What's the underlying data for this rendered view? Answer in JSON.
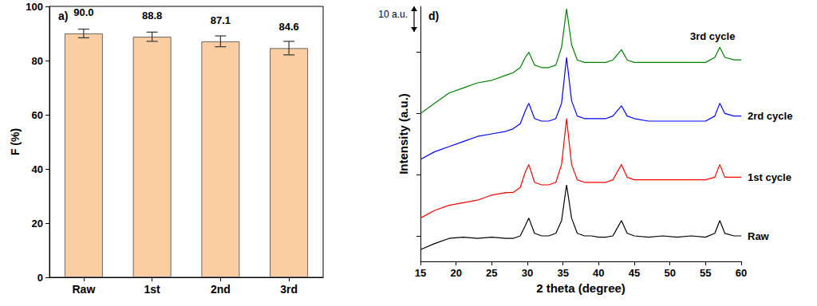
{
  "chart_data": [
    {
      "type": "bar",
      "title": "a)",
      "categories": [
        "Raw",
        "1st",
        "2nd",
        "3rd"
      ],
      "values": [
        90.0,
        88.8,
        87.1,
        84.6
      ],
      "value_labels": [
        "90.0",
        "88.8",
        "87.1",
        "84.6"
      ],
      "errors": [
        1.6,
        1.7,
        2.0,
        2.5
      ],
      "color": "#fbcda3",
      "ylabel": "F (%)",
      "ylim": [
        0,
        100
      ],
      "yticks": [
        0,
        20,
        40,
        60,
        80,
        100
      ],
      "data_labels": true,
      "grid": false
    },
    {
      "type": "line",
      "title": "d)",
      "xlabel": "2 theta (degree)",
      "ylabel": "Intensity (a.u.)",
      "x": [
        15,
        17,
        19,
        21,
        23,
        25,
        27,
        28,
        29,
        29.7,
        30.2,
        31,
        32,
        33,
        34,
        34.8,
        35.5,
        36.2,
        37,
        38,
        39,
        40,
        41,
        42,
        42.6,
        43.2,
        44,
        45,
        47,
        49,
        51,
        53,
        55,
        56.3,
        57,
        57.7,
        59,
        60
      ],
      "series": [
        {
          "name": "Raw",
          "color": "#000000",
          "values": [
            4.6,
            7,
            9,
            9.5,
            9,
            9.5,
            9,
            9,
            10,
            14,
            17,
            11,
            10,
            10,
            11,
            16,
            30,
            17,
            11,
            10,
            10,
            9.5,
            9.5,
            10,
            13,
            16,
            11,
            10,
            9.5,
            10,
            9.5,
            10,
            9.5,
            11,
            16,
            11,
            10,
            10
          ]
        },
        {
          "name": "1st cycle",
          "color": "#ff0000",
          "values": [
            17,
            20,
            22,
            23,
            24,
            26,
            27,
            27,
            29,
            35,
            38,
            31,
            30,
            30,
            31,
            38,
            56,
            38,
            32,
            31,
            31,
            31,
            31,
            32,
            35,
            38,
            33,
            32,
            32,
            32,
            32,
            32,
            32,
            33,
            38,
            33,
            33,
            33
          ]
        },
        {
          "name": "2rd cycle",
          "color": "#0000ff",
          "values": [
            40,
            43,
            45,
            47,
            49,
            50,
            51,
            52,
            54,
            59,
            62,
            56,
            55,
            55,
            56,
            62,
            80,
            63,
            57,
            56,
            56,
            56,
            56,
            57,
            59,
            61,
            57,
            56,
            55,
            55,
            55,
            55,
            55,
            57,
            62,
            58,
            57,
            57
          ]
        },
        {
          "name": "3rd cycle",
          "color": "#008000",
          "values": [
            58,
            62,
            66,
            68,
            70,
            71,
            73,
            74,
            76,
            80,
            82,
            77,
            76,
            76,
            77,
            84,
            99,
            85,
            79,
            78,
            78,
            78,
            78,
            79,
            81,
            83,
            79,
            78,
            78,
            78,
            78,
            78,
            78,
            80,
            84,
            80,
            79,
            79
          ]
        }
      ],
      "xlim": [
        15,
        60
      ],
      "xticks": [
        15,
        20,
        25,
        30,
        35,
        40,
        45,
        50,
        55,
        60
      ],
      "ylim": [
        0,
        100
      ],
      "yticks": [
        10,
        34,
        58,
        82
      ],
      "tick_labels": "x",
      "grid": false,
      "annotations": [
        {
          "text": "10 a.u.",
          "length": 10
        }
      ]
    }
  ]
}
